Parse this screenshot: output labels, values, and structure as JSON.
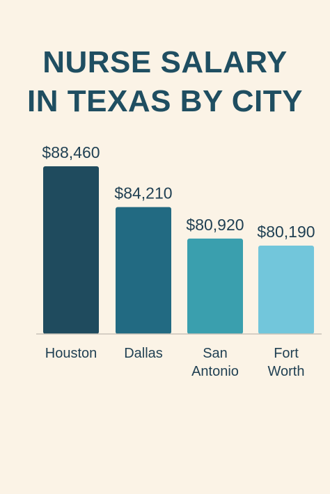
{
  "header": {
    "title_line1": "NURSE SALARY",
    "title_line2": "IN TEXAS BY CITY"
  },
  "colors": {
    "background": "#fbf3e6",
    "title": "#1f4e61",
    "text": "#1f3f52",
    "baseline": "#c9c3b8"
  },
  "chart_data": {
    "type": "bar",
    "title": "NURSE SALARY IN TEXAS BY CITY",
    "xlabel": "",
    "ylabel": "",
    "grid": false,
    "categories": [
      "Houston",
      "Dallas",
      "San Antonio",
      "Fort Worth"
    ],
    "category_lines": [
      [
        "Houston"
      ],
      [
        "Dallas"
      ],
      [
        "San",
        "Antonio"
      ],
      [
        "Fort",
        "Worth"
      ]
    ],
    "values": [
      88460,
      84210,
      80920,
      80190
    ],
    "value_labels": [
      "$88,460",
      "$84,210",
      "$80,920",
      "$80,190"
    ],
    "bar_colors": [
      "#1f4b5e",
      "#226a82",
      "#3a9fae",
      "#72c6db"
    ],
    "ylim": [
      80190,
      88460
    ]
  }
}
